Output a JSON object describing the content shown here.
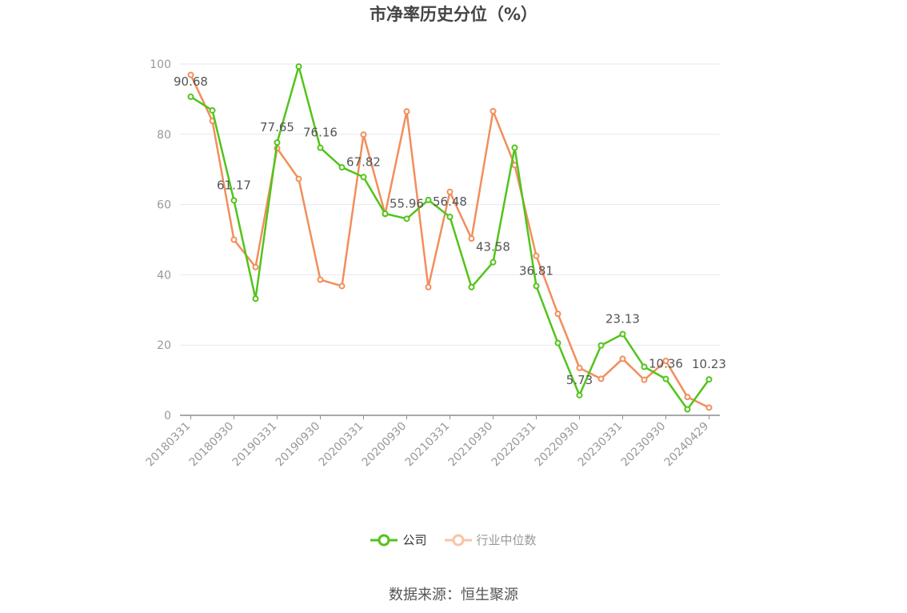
{
  "chart_data": {
    "type": "line",
    "title": "市净率历史分位（%）",
    "source": "数据来源：恒生聚源",
    "ylim": [
      0,
      100
    ],
    "yticks": [
      0,
      20,
      40,
      60,
      80,
      100
    ],
    "x": [
      "20180331",
      "20180630",
      "20180930",
      "20181231",
      "20190331",
      "20190630",
      "20190930",
      "20191231",
      "20200331",
      "20200630",
      "20200930",
      "20201231",
      "20210331",
      "20210630",
      "20210930",
      "20211231",
      "20220331",
      "20220630",
      "20220930",
      "20221231",
      "20230331",
      "20230630",
      "20230930",
      "20231231",
      "20240429"
    ],
    "xtick_labels": [
      "20180331",
      "20180930",
      "20190331",
      "20190930",
      "20200331",
      "20200930",
      "20210331",
      "20210930",
      "20220331",
      "20220930",
      "20230331",
      "20230930",
      "20240429"
    ],
    "grid": true,
    "legend_position": "bottom",
    "series": [
      {
        "name": "公司",
        "color": "#52c41a",
        "values": [
          90.68,
          86.8,
          61.17,
          33.2,
          77.65,
          99.3,
          76.16,
          70.6,
          67.82,
          57.4,
          55.96,
          61.3,
          56.48,
          36.5,
          43.58,
          76.2,
          36.81,
          20.6,
          5.73,
          19.9,
          23.13,
          13.8,
          10.36,
          1.7,
          10.23
        ],
        "labels": [
          "90.68",
          "",
          "61.17",
          "",
          "77.65",
          "",
          "76.16",
          "",
          "67.82",
          "",
          "55.96",
          "",
          "56.48",
          "",
          "43.58",
          "",
          "36.81",
          "",
          "5.73",
          "",
          "23.13",
          "",
          "10.36",
          "",
          "10.23"
        ]
      },
      {
        "name": "行业中位数",
        "color": "#f28e5c",
        "values": [
          96.9,
          83.8,
          50.0,
          42.2,
          76.0,
          67.3,
          38.6,
          36.8,
          79.9,
          57.3,
          86.5,
          36.5,
          63.6,
          50.3,
          86.6,
          71.2,
          45.4,
          28.9,
          13.5,
          10.4,
          16.1,
          10.1,
          15.5,
          5.2,
          2.2
        ]
      }
    ]
  }
}
